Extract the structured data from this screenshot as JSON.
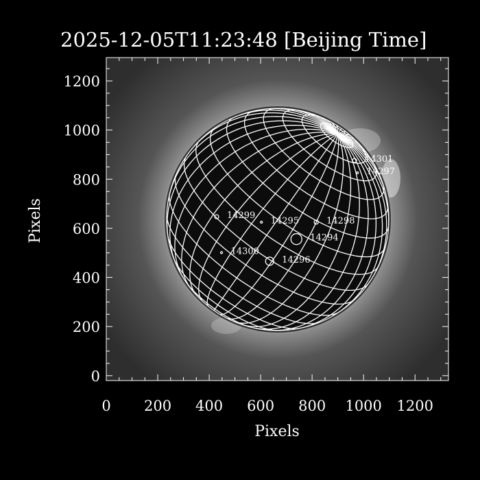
{
  "chart_data": {
    "type": "image",
    "title": "2025-12-05T11:23:48 [Beijing Time]",
    "xlabel": "Pixels",
    "ylabel": "Pixels",
    "xlim": [
      0,
      1330
    ],
    "ylim": [
      -20,
      1295
    ],
    "x_ticks": [
      "0",
      "200",
      "400",
      "600",
      "800",
      "1000",
      "1200"
    ],
    "y_ticks": [
      "0",
      "200",
      "400",
      "600",
      "800",
      "1000",
      "1200"
    ],
    "grid": "heliographic latitude/longitude grid on solar disk",
    "colormap": "grayscale",
    "regions": [
      {
        "label": "14301",
        "x": 965,
        "y": 876,
        "size": "small"
      },
      {
        "label": "14297",
        "x": 976,
        "y": 826,
        "size": "dot"
      },
      {
        "label": "14299",
        "x": 429,
        "y": 647,
        "size": "small"
      },
      {
        "label": "14295",
        "x": 603,
        "y": 625,
        "size": "dot"
      },
      {
        "label": "14298",
        "x": 816,
        "y": 625,
        "size": "small"
      },
      {
        "label": "14294",
        "x": 739,
        "y": 556,
        "size": "large"
      },
      {
        "label": "14300",
        "x": 448,
        "y": 501,
        "size": "dot"
      },
      {
        "label": "14296",
        "x": 635,
        "y": 466,
        "size": "medium"
      }
    ]
  }
}
